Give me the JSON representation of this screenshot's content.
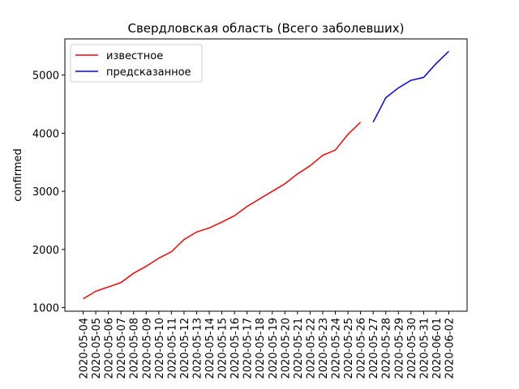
{
  "chart_data": {
    "type": "line",
    "title": "Свердловская область (Всего заболевших)",
    "ylabel": "confirmed",
    "categories": [
      "2020-05-04",
      "2020-05-05",
      "2020-05-06",
      "2020-05-07",
      "2020-05-08",
      "2020-05-09",
      "2020-05-10",
      "2020-05-11",
      "2020-05-12",
      "2020-05-13",
      "2020-05-14",
      "2020-05-15",
      "2020-05-16",
      "2020-05-17",
      "2020-05-18",
      "2020-05-19",
      "2020-05-20",
      "2020-05-21",
      "2020-05-22",
      "2020-05-23",
      "2020-05-24",
      "2020-05-25",
      "2020-05-26",
      "2020-05-27",
      "2020-05-28",
      "2020-05-29",
      "2020-05-30",
      "2020-05-31",
      "2020-06-01",
      "2020-06-02"
    ],
    "series": [
      {
        "name": "известное",
        "color": "#ff0000",
        "values": [
          1150,
          1280,
          1355,
          1430,
          1590,
          1710,
          1850,
          1960,
          2170,
          2300,
          2370,
          2470,
          2580,
          2740,
          2870,
          3000,
          3130,
          3300,
          3440,
          3620,
          3710,
          3980,
          4190,
          null,
          null,
          null,
          null,
          null,
          null,
          null
        ]
      },
      {
        "name": "предсказанное",
        "color": "#0000ff",
        "values": [
          null,
          null,
          null,
          null,
          null,
          null,
          null,
          null,
          null,
          null,
          null,
          null,
          null,
          null,
          null,
          null,
          null,
          null,
          null,
          null,
          null,
          null,
          null,
          4190,
          4610,
          4780,
          4910,
          4960,
          5200,
          5410
        ]
      }
    ],
    "ylim": [
      937,
      5623
    ],
    "yticks": [
      1000,
      2000,
      3000,
      4000,
      5000
    ],
    "legend": "upper left",
    "grid": false
  }
}
